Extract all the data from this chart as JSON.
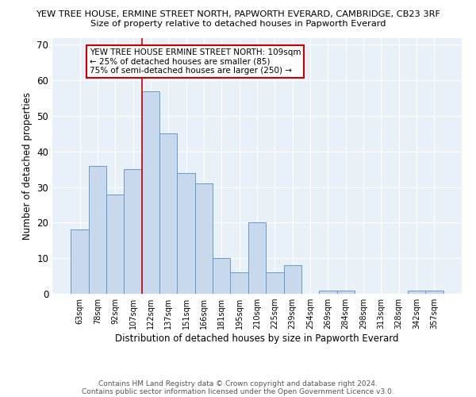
{
  "title_line1": "YEW TREE HOUSE, ERMINE STREET NORTH, PAPWORTH EVERARD, CAMBRIDGE, CB23 3RF",
  "title_line2": "Size of property relative to detached houses in Papworth Everard",
  "xlabel": "Distribution of detached houses by size in Papworth Everard",
  "ylabel": "Number of detached properties",
  "footnote_line1": "Contains HM Land Registry data © Crown copyright and database right 2024.",
  "footnote_line2": "Contains public sector information licensed under the Open Government Licence v3.0.",
  "categories": [
    "63sqm",
    "78sqm",
    "92sqm",
    "107sqm",
    "122sqm",
    "137sqm",
    "151sqm",
    "166sqm",
    "181sqm",
    "195sqm",
    "210sqm",
    "225sqm",
    "239sqm",
    "254sqm",
    "269sqm",
    "284sqm",
    "298sqm",
    "313sqm",
    "328sqm",
    "342sqm",
    "357sqm"
  ],
  "values": [
    18,
    36,
    28,
    35,
    57,
    45,
    34,
    31,
    10,
    6,
    20,
    6,
    8,
    0,
    1,
    1,
    0,
    0,
    0,
    1,
    1
  ],
  "bar_color": "#c9d9ed",
  "bar_edge_color": "#6699cc",
  "annotation_title": "YEW TREE HOUSE ERMINE STREET NORTH: 109sqm",
  "annotation_line2": "← 25% of detached houses are smaller (85)",
  "annotation_line3": "75% of semi-detached houses are larger (250) →",
  "marker_category_index": 3.5,
  "ylim": [
    0,
    72
  ],
  "yticks": [
    0,
    10,
    20,
    30,
    40,
    50,
    60,
    70
  ],
  "annotation_box_color": "#ffffff",
  "annotation_box_edge": "#cc0000",
  "marker_line_color": "#cc0000",
  "background_color": "#e8f0f8"
}
